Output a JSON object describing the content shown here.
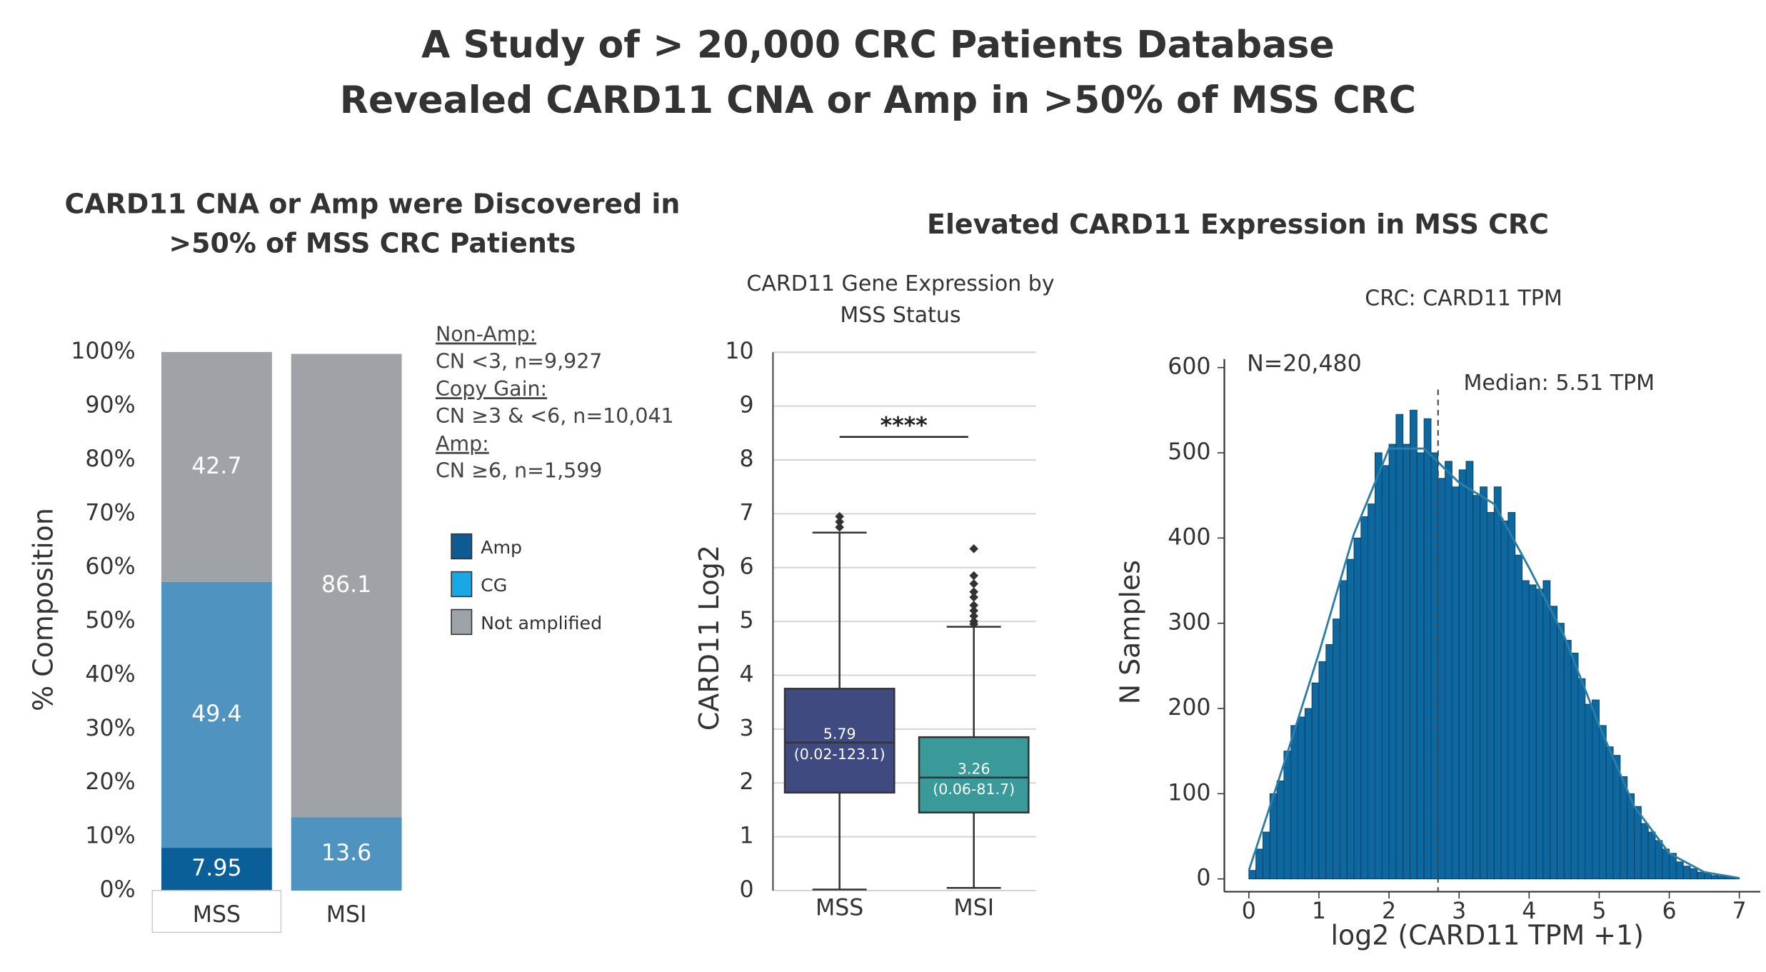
{
  "title": [
    "A Study of > 20,000 CRC Patients Database",
    "Revealed CARD11 CNA or Amp in >50% of MSS CRC"
  ],
  "chart_data": [
    {
      "type": "stacked_bar",
      "title": [
        "CARD11 CNA or Amp were Discovered in",
        ">50% of MSS CRC Patients"
      ],
      "y_label": "% Composition",
      "categories": [
        "MSS",
        "MSI"
      ],
      "series": [
        {
          "name": "Amp",
          "color": "#0b5f98",
          "legend_color": "#0e5a93",
          "values": [
            7.95,
            null
          ]
        },
        {
          "name": "CG",
          "color": "#4f93c0",
          "legend_color": "#19a7e6",
          "values": [
            49.4,
            13.6
          ]
        },
        {
          "name": "Not amplified",
          "color": "#9fa2a6",
          "legend_color": "#9ea3a8",
          "values": [
            42.7,
            86.1
          ]
        }
      ],
      "ylim": [
        0,
        100
      ],
      "yticks": [
        {
          "value": 0,
          "label": "0%"
        },
        {
          "value": 10,
          "label": "10%"
        },
        {
          "value": 20,
          "label": "20%"
        },
        {
          "value": 30,
          "label": "30%"
        },
        {
          "value": 40,
          "label": "40%"
        },
        {
          "value": 50,
          "label": "50%"
        },
        {
          "value": 60,
          "label": "60%"
        },
        {
          "value": 70,
          "label": "70%"
        },
        {
          "value": 80,
          "label": "80%"
        },
        {
          "value": 90,
          "label": "90%"
        },
        {
          "value": 100,
          "label": "100%"
        }
      ],
      "notes": [
        {
          "heading": "Non-Amp:",
          "text": "CN <3, n=9,927"
        },
        {
          "heading": "Copy Gain:",
          "text": "CN ≥3 & <6, n=10,041"
        },
        {
          "heading": "Amp:",
          "text": "CN ≥6, n=1,599"
        }
      ]
    },
    {
      "type": "box",
      "section_title": "Elevated CARD11 Expression in MSS CRC",
      "title": [
        "CARD11 Gene Expression by",
        "MSS Status"
      ],
      "y_label": "CARD11 Log2",
      "categories": [
        "MSS",
        "MSI"
      ],
      "boxes": [
        {
          "color": "#3f4b80",
          "whislo": 0.02,
          "q1": 1.82,
          "med": 2.75,
          "q3": 3.75,
          "whishi": 6.65,
          "fliers": [
            6.75,
            6.85,
            6.95
          ],
          "label": "5.79",
          "range_label": "(0.02-123.1)"
        },
        {
          "color": "#3a9a9a",
          "whislo": 0.05,
          "q1": 1.45,
          "med": 2.1,
          "q3": 2.85,
          "whishi": 4.9,
          "fliers": [
            4.95,
            5.0,
            5.1,
            5.2,
            5.3,
            5.45,
            5.55,
            5.7,
            5.85,
            6.35
          ],
          "label": "3.26",
          "range_label": "(0.06-81.7)"
        }
      ],
      "annotation": "****",
      "ylim": [
        0,
        10
      ],
      "yticks": [
        0,
        1,
        2,
        3,
        4,
        5,
        6,
        7,
        8,
        9,
        10
      ],
      "grid": true
    },
    {
      "type": "histogram",
      "title": "CRC: CARD11 TPM",
      "x_label": "log2 (CARD11 TPM +1)",
      "y_label": "N Samples",
      "color": "#0e68a0",
      "bins": [
        0,
        0.1,
        0.2,
        0.3,
        0.4,
        0.5,
        0.6,
        0.7,
        0.8,
        0.9,
        1,
        1.1,
        1.2,
        1.3,
        1.4,
        1.5,
        1.6,
        1.7,
        1.8,
        1.9,
        2,
        2.1,
        2.2,
        2.3,
        2.4,
        2.5,
        2.6,
        2.7,
        2.8,
        2.9,
        3,
        3.1,
        3.2,
        3.3,
        3.4,
        3.5,
        3.6,
        3.7,
        3.8,
        3.9,
        4,
        4.1,
        4.2,
        4.3,
        4.4,
        4.5,
        4.6,
        4.7,
        4.8,
        4.9,
        5,
        5.1,
        5.2,
        5.3,
        5.4,
        5.5,
        5.6,
        5.7,
        5.8,
        5.9,
        6,
        6.1,
        6.2,
        6.3,
        6.4,
        6.5,
        6.6,
        6.7,
        6.8,
        6.9,
        7
      ],
      "counts": [
        10,
        35,
        55,
        100,
        115,
        150,
        180,
        190,
        200,
        230,
        255,
        275,
        305,
        350,
        375,
        400,
        425,
        440,
        500,
        485,
        510,
        545,
        510,
        550,
        500,
        540,
        500,
        470,
        490,
        460,
        480,
        490,
        450,
        460,
        430,
        460,
        420,
        430,
        380,
        350,
        345,
        340,
        350,
        320,
        300,
        280,
        265,
        235,
        205,
        210,
        180,
        155,
        145,
        120,
        100,
        85,
        65,
        55,
        45,
        35,
        30,
        20,
        15,
        12,
        8,
        6,
        4,
        3,
        2,
        1
      ],
      "density": {
        "color": "#2a7fa8",
        "x": [
          0,
          0.5,
          1,
          1.5,
          2,
          2.5,
          3,
          3.5,
          4,
          4.5,
          5,
          5.5,
          6,
          6.5,
          7
        ],
        "values": [
          10,
          135,
          265,
          405,
          505,
          505,
          465,
          440,
          365,
          285,
          180,
          85,
          30,
          8,
          1
        ]
      },
      "median_x": 2.7,
      "annotations": [
        "N=20,480",
        "Median: 5.51 TPM"
      ],
      "xlim": [
        -0.35,
        7.3
      ],
      "xticks": [
        0,
        1,
        2,
        3,
        4,
        5,
        6,
        7
      ],
      "ylim": [
        -15,
        610
      ],
      "yticks": [
        0,
        100,
        200,
        300,
        400,
        500,
        600
      ]
    }
  ]
}
